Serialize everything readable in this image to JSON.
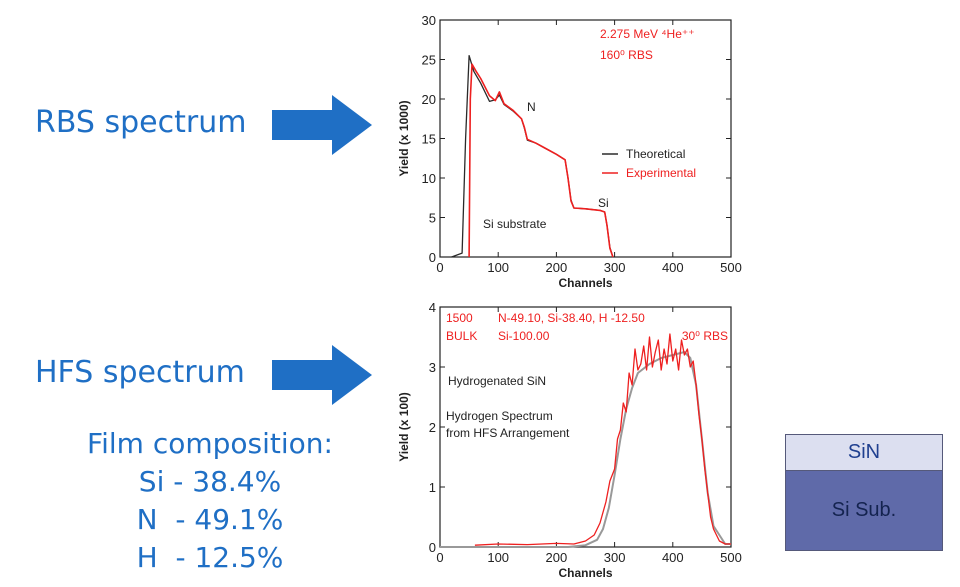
{
  "labels": {
    "rbs": "RBS spectrum",
    "hfs": "HFS spectrum"
  },
  "composition": {
    "title": "Film composition:",
    "si": "Si - 38.4%",
    "n": "N  - 49.1%",
    "h": "H  - 12.5%"
  },
  "layers": {
    "top": "SiN",
    "substrate": "Si Sub."
  },
  "colors": {
    "accent": "#1f6fc5",
    "theoretical": "#2a2a2a",
    "experimental": "#ee2020"
  },
  "chart_data": [
    {
      "type": "line",
      "title": "",
      "xlabel": "Channels",
      "ylabel": "Yield (x 1000)",
      "xlim": [
        0,
        500
      ],
      "ylim": [
        0,
        30
      ],
      "x_ticks": [
        0,
        100,
        200,
        300,
        400,
        500
      ],
      "y_ticks": [
        0,
        5,
        10,
        15,
        20,
        25,
        30
      ],
      "annotations": {
        "beam": "2.275 MeV ⁴He⁺⁺",
        "geometry": "160⁰ RBS",
        "n_edge": "N",
        "si_edge": "Si",
        "substrate": "Si substrate"
      },
      "legend": {
        "placement": "right",
        "theoretical": "Theoretical",
        "experimental": "Experimental"
      },
      "series": [
        {
          "name": "Theoretical",
          "x": [
            20,
            38,
            44,
            50,
            58,
            70,
            85,
            95,
            102,
            110,
            125,
            140,
            145,
            150,
            165,
            180,
            200,
            215,
            220,
            225,
            230,
            250,
            275,
            283,
            287,
            292,
            297
          ],
          "y": [
            0,
            0.5,
            15,
            25.5,
            23.5,
            22,
            19.7,
            19.9,
            20.5,
            19.3,
            18.5,
            17.5,
            16.3,
            14.8,
            14.4,
            13.8,
            13.0,
            12.3,
            10,
            7.2,
            6.2,
            6.1,
            5.9,
            5.7,
            4,
            1.2,
            0
          ]
        },
        {
          "name": "Experimental",
          "x": [
            50,
            52,
            55,
            62,
            70,
            85,
            95,
            102,
            110,
            125,
            140,
            145,
            150,
            165,
            180,
            200,
            215,
            220,
            225,
            230,
            250,
            275,
            283,
            287,
            292,
            297
          ],
          "y": [
            0,
            20,
            24.4,
            23.5,
            22.6,
            20.4,
            19.8,
            20.9,
            19.4,
            18.6,
            17.5,
            16.4,
            14.9,
            14.4,
            13.8,
            13.0,
            12.3,
            10,
            7.1,
            6.2,
            6.1,
            5.9,
            5.7,
            4,
            1.1,
            0
          ]
        }
      ]
    },
    {
      "type": "line",
      "title": "",
      "xlabel": "Channels",
      "ylabel": "Yield (x 100)",
      "xlim": [
        0,
        500
      ],
      "ylim": [
        0,
        4
      ],
      "x_ticks": [
        0,
        100,
        200,
        300,
        400,
        500
      ],
      "y_ticks": [
        0,
        1,
        2,
        3,
        4
      ],
      "annotations": {
        "header_left_1": "1500",
        "header_mid_1": "N-49.10, Si-38.40, H -12.50",
        "header_left_2": "BULK",
        "header_mid_2": "Si-100.00",
        "geometry": "30⁰ RBS",
        "sample": "Hydrogenated SiN",
        "note_1": "Hydrogen Spectrum",
        "note_2": "from HFS Arrangement"
      },
      "series": [
        {
          "name": "",
          "x": [
            0,
            220,
            250,
            270,
            280,
            290,
            300,
            310,
            320,
            330,
            340,
            360,
            380,
            400,
            420,
            430,
            440,
            450,
            460,
            470,
            490,
            500
          ],
          "y": [
            0,
            0,
            0.03,
            0.12,
            0.3,
            0.65,
            1.2,
            1.8,
            2.3,
            2.65,
            2.9,
            3.05,
            3.15,
            3.2,
            3.25,
            3.15,
            2.7,
            1.8,
            0.9,
            0.35,
            0.05,
            0.05
          ]
        },
        {
          "name": "",
          "x": [
            60,
            100,
            150,
            200,
            230,
            250,
            265,
            275,
            285,
            292,
            300,
            305,
            310,
            315,
            320,
            325,
            330,
            335,
            340,
            345,
            350,
            355,
            360,
            365,
            370,
            375,
            380,
            385,
            390,
            395,
            400,
            405,
            410,
            415,
            420,
            425,
            430,
            435,
            440,
            445,
            450,
            455,
            460,
            465,
            470,
            480,
            490,
            500
          ],
          "y": [
            0.03,
            0.05,
            0.04,
            0.06,
            0.05,
            0.1,
            0.2,
            0.4,
            0.75,
            1.1,
            1.3,
            1.8,
            1.95,
            2.4,
            2.25,
            2.9,
            2.7,
            3.3,
            2.95,
            3.05,
            3.35,
            2.95,
            3.5,
            3.0,
            3.25,
            3.45,
            2.95,
            3.3,
            3.05,
            3.55,
            3.1,
            3.3,
            2.95,
            3.45,
            3.2,
            3.3,
            3.0,
            3.1,
            2.7,
            2.2,
            1.8,
            1.3,
            0.9,
            0.5,
            0.3,
            0.1,
            0.05,
            0.05
          ]
        }
      ]
    }
  ]
}
